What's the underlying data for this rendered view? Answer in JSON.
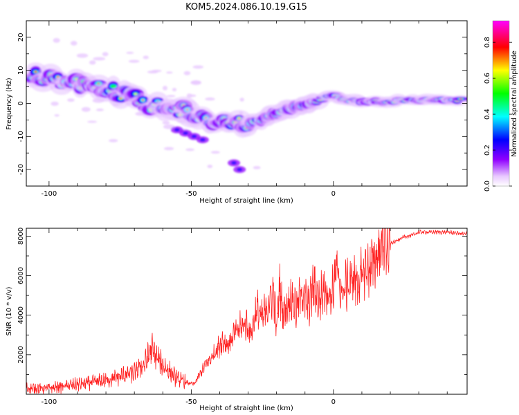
{
  "figure": {
    "title": "KOM5.2024.086.10.19.G15"
  },
  "chart_data": [
    {
      "type": "heatmap",
      "title": "",
      "xlabel": "Height of straight line (km)",
      "ylabel": "Frequency (Hz)",
      "xlim": [
        -108,
        47
      ],
      "ylim": [
        -25,
        25
      ],
      "xticks": [
        -100,
        -50,
        0
      ],
      "yticks": [
        -20,
        -10,
        0,
        10,
        20
      ],
      "colorbar": {
        "label": "Normalized spectral amplitude",
        "range": [
          0,
          0.92
        ],
        "ticks": [
          0.0,
          0.2,
          0.4,
          0.6,
          0.8
        ],
        "colors": [
          "#ffffff",
          "#e8c8ff",
          "#9000ff",
          "#0000ff",
          "#00ffff",
          "#00ff00",
          "#ffff00",
          "#ff0000",
          "#ff00ff"
        ]
      },
      "ridge": {
        "x": [
          -105,
          -100,
          -95,
          -90,
          -85,
          -80,
          -75,
          -70,
          -65,
          -60,
          -55,
          -50,
          -45,
          -40,
          -35,
          -30,
          -25,
          -20,
          -15,
          -10,
          -5,
          0,
          5,
          10,
          15,
          20,
          25,
          30,
          35,
          40,
          45
        ],
        "y": [
          8.5,
          8,
          7,
          6,
          5.5,
          4,
          3,
          1.5,
          0,
          -1,
          -2,
          -3,
          -4.5,
          -6,
          -6.5,
          -6,
          -5,
          -3,
          -1.5,
          -0.5,
          1,
          2.5,
          1,
          0.5,
          0.5,
          0.5,
          1,
          1,
          1,
          1,
          1
        ]
      },
      "colors": {
        "ridge_core": "#ff2020"
      }
    },
    {
      "type": "line",
      "title": "",
      "xlabel": "Height of straight line (km)",
      "ylabel": "SNR (10 * v/v)",
      "xlim": [
        -108,
        47
      ],
      "ylim": [
        0,
        8400
      ],
      "xticks": [
        -100,
        -50,
        0
      ],
      "yticks": [
        2000,
        4000,
        6000,
        8000
      ],
      "series": [
        {
          "color": "#ff2020",
          "x": [
            -108,
            -100,
            -95,
            -90,
            -85,
            -80,
            -75,
            -70,
            -66,
            -64,
            -62,
            -60,
            -58,
            -55,
            -52,
            -49,
            -47,
            -45,
            -43,
            -41,
            -39,
            -37,
            -35,
            -33,
            -31,
            -29,
            -27,
            -25,
            -23,
            -21,
            -20,
            -19,
            -18,
            -17,
            -15,
            -13,
            -11,
            -9,
            -7,
            -5,
            -3,
            -1,
            1,
            3,
            5,
            7,
            9,
            11,
            13,
            15,
            17,
            18,
            19,
            21,
            23,
            25,
            27,
            30,
            35,
            40,
            47
          ],
          "y": [
            300,
            300,
            400,
            500,
            600,
            700,
            900,
            1100,
            1600,
            2300,
            1800,
            1500,
            1200,
            800,
            600,
            500,
            1000,
            1500,
            1800,
            2300,
            2700,
            2500,
            3000,
            3300,
            3600,
            3100,
            4300,
            3800,
            4500,
            5200,
            3200,
            5600,
            4300,
            4200,
            4900,
            4300,
            5300,
            4400,
            5500,
            4700,
            5500,
            4800,
            6200,
            5100,
            5600,
            5900,
            5600,
            6300,
            6400,
            6900,
            7600,
            8300,
            7500,
            7700,
            7800,
            8000,
            8000,
            8200,
            8200,
            8200,
            8100
          ]
        }
      ]
    }
  ]
}
